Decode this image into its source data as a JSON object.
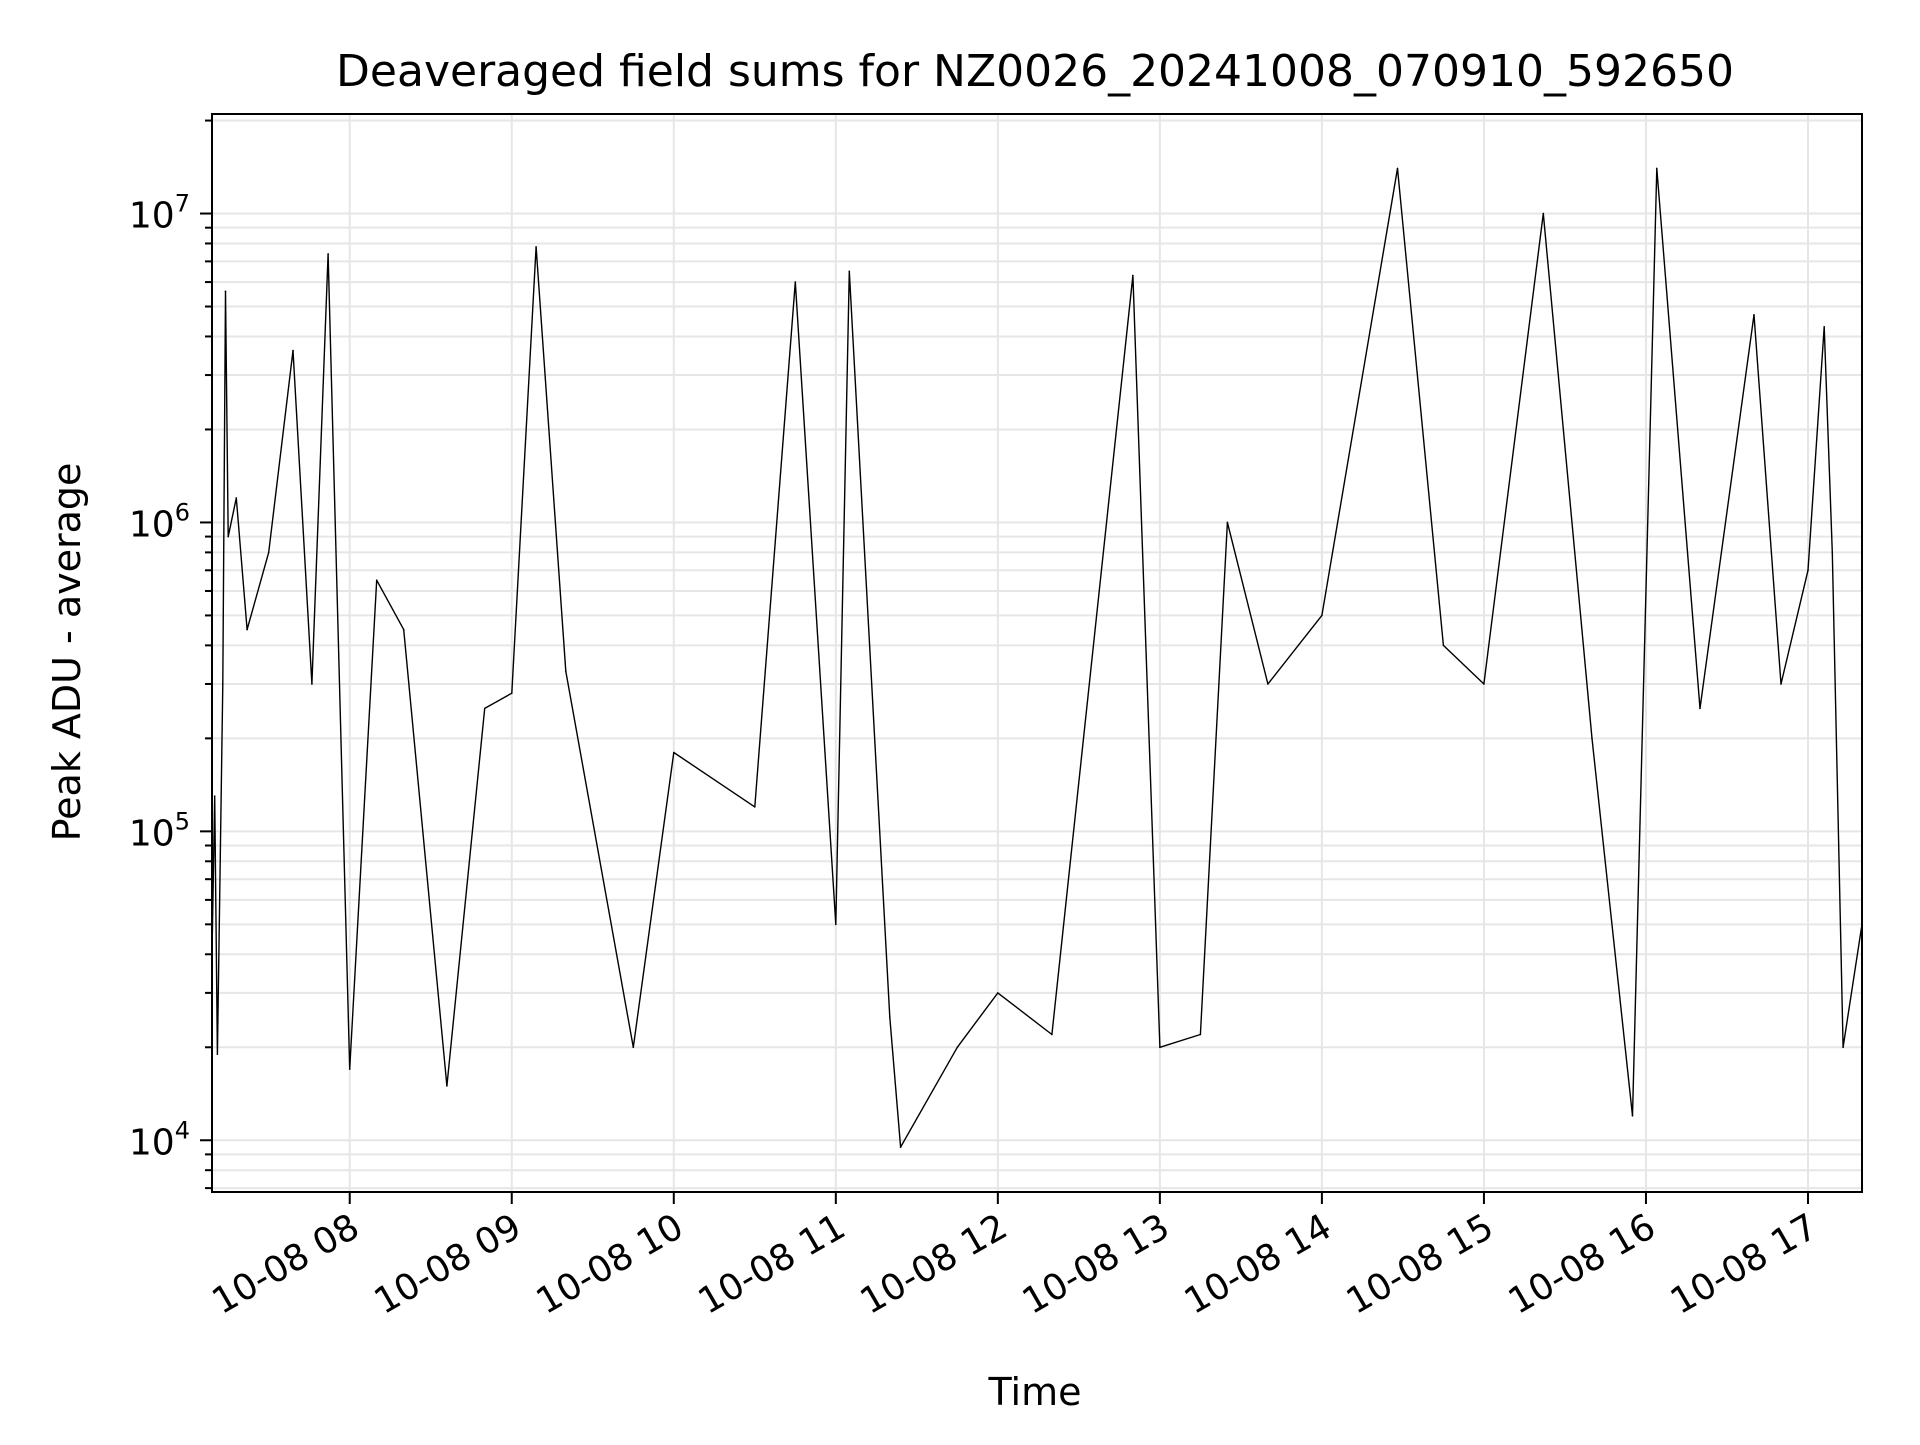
{
  "chart_data": {
    "type": "line",
    "title": "Deaveraged field sums for NZ0026_20241008_070910_592650",
    "xlabel": "Time",
    "ylabel": "Peak ADU - average",
    "yscale": "log",
    "ylim": [
      6800,
      21000000
    ],
    "xlim": [
      "2024-10-08 07:09",
      "2024-10-08 17:20"
    ],
    "x_ticks": [
      {
        "time": "2024-10-08 08:00",
        "label": "10-08 08"
      },
      {
        "time": "2024-10-08 09:00",
        "label": "10-08 09"
      },
      {
        "time": "2024-10-08 10:00",
        "label": "10-08 10"
      },
      {
        "time": "2024-10-08 11:00",
        "label": "10-08 11"
      },
      {
        "time": "2024-10-08 12:00",
        "label": "10-08 12"
      },
      {
        "time": "2024-10-08 13:00",
        "label": "10-08 13"
      },
      {
        "time": "2024-10-08 14:00",
        "label": "10-08 14"
      },
      {
        "time": "2024-10-08 15:00",
        "label": "10-08 15"
      },
      {
        "time": "2024-10-08 16:00",
        "label": "10-08 16"
      },
      {
        "time": "2024-10-08 17:00",
        "label": "10-08 17"
      }
    ],
    "y_ticks": [
      {
        "value": 10000,
        "base": "10",
        "exp": "4"
      },
      {
        "value": 100000,
        "base": "10",
        "exp": "5"
      },
      {
        "value": 1000000,
        "base": "10",
        "exp": "6"
      },
      {
        "value": 10000000,
        "base": "10",
        "exp": "7"
      }
    ],
    "grid": true,
    "grid_minor": true,
    "line_color": "#000000",
    "grid_color": "#e6e6e6",
    "series": [
      {
        "values_note_removed": true,
        "points": [
          [
            "2024-10-08 07:09",
            40000
          ],
          [
            "2024-10-08 07:10",
            130000
          ],
          [
            "2024-10-08 07:11",
            19000
          ],
          [
            "2024-10-08 07:13",
            300000
          ],
          [
            "2024-10-08 07:14",
            5600000
          ],
          [
            "2024-10-08 07:15",
            900000
          ],
          [
            "2024-10-08 07:18",
            1200000
          ],
          [
            "2024-10-08 07:22",
            450000
          ],
          [
            "2024-10-08 07:30",
            800000
          ],
          [
            "2024-10-08 07:39",
            3600000
          ],
          [
            "2024-10-08 07:46",
            300000
          ],
          [
            "2024-10-08 07:52",
            7400000
          ],
          [
            "2024-10-08 08:00",
            17000
          ],
          [
            "2024-10-08 08:10",
            650000
          ],
          [
            "2024-10-08 08:20",
            450000
          ],
          [
            "2024-10-08 08:36",
            15000
          ],
          [
            "2024-10-08 08:50",
            250000
          ],
          [
            "2024-10-08 09:00",
            280000
          ],
          [
            "2024-10-08 09:09",
            7800000
          ],
          [
            "2024-10-08 09:20",
            330000
          ],
          [
            "2024-10-08 09:45",
            20000
          ],
          [
            "2024-10-08 10:00",
            180000
          ],
          [
            "2024-10-08 10:30",
            120000
          ],
          [
            "2024-10-08 10:45",
            6000000
          ],
          [
            "2024-10-08 11:00",
            50000
          ],
          [
            "2024-10-08 11:05",
            6500000
          ],
          [
            "2024-10-08 11:20",
            25000
          ],
          [
            "2024-10-08 11:24",
            9500
          ],
          [
            "2024-10-08 11:45",
            20000
          ],
          [
            "2024-10-08 12:00",
            30000
          ],
          [
            "2024-10-08 12:20",
            22000
          ],
          [
            "2024-10-08 12:50",
            6300000
          ],
          [
            "2024-10-08 13:00",
            20000
          ],
          [
            "2024-10-08 13:15",
            22000
          ],
          [
            "2024-10-08 13:25",
            1000000
          ],
          [
            "2024-10-08 13:40",
            300000
          ],
          [
            "2024-10-08 14:00",
            500000
          ],
          [
            "2024-10-08 14:28",
            14000000
          ],
          [
            "2024-10-08 14:45",
            400000
          ],
          [
            "2024-10-08 15:00",
            300000
          ],
          [
            "2024-10-08 15:22",
            10000000
          ],
          [
            "2024-10-08 15:40",
            200000
          ],
          [
            "2024-10-08 15:55",
            12000
          ],
          [
            "2024-10-08 16:04",
            14000000
          ],
          [
            "2024-10-08 16:20",
            250000
          ],
          [
            "2024-10-08 16:40",
            4700000
          ],
          [
            "2024-10-08 16:50",
            300000
          ],
          [
            "2024-10-08 17:00",
            700000
          ],
          [
            "2024-10-08 17:06",
            4300000
          ],
          [
            "2024-10-08 17:09",
            800000
          ],
          [
            "2024-10-08 17:13",
            20000
          ],
          [
            "2024-10-08 17:20",
            50000
          ]
        ]
      }
    ]
  }
}
